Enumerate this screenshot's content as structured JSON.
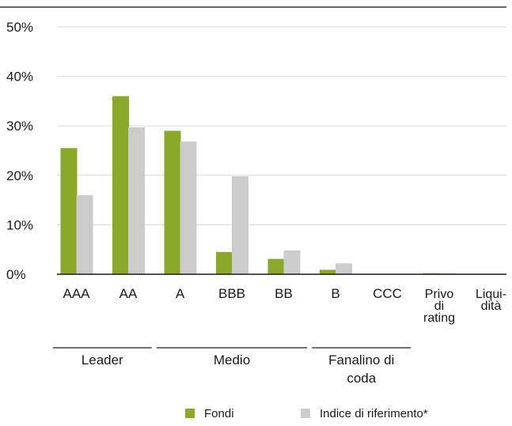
{
  "chart_data": {
    "type": "bar",
    "title": "",
    "xlabel": "",
    "ylabel": "",
    "ylim": [
      0,
      50
    ],
    "y_ticks": [
      0,
      10,
      20,
      30,
      40,
      50
    ],
    "y_tick_labels": [
      "0%",
      "10%",
      "20%",
      "30%",
      "40%",
      "50%"
    ],
    "grid": true,
    "categories": [
      [
        "AAA"
      ],
      [
        "AA"
      ],
      [
        "A"
      ],
      [
        "BBB"
      ],
      [
        "BB"
      ],
      [
        "B"
      ],
      [
        "CCC"
      ],
      [
        "Privo",
        "di",
        "rating"
      ],
      [
        "Liqui-",
        "dità"
      ]
    ],
    "series": [
      {
        "name": "Fondi",
        "color": "#8aa82a",
        "values": [
          25.5,
          36.0,
          29.0,
          4.5,
          3.1,
          0.9,
          0.0,
          0.2,
          0.0
        ]
      },
      {
        "name": "Indice di riferimento*",
        "color": "#cccccc",
        "values": [
          16.0,
          29.7,
          26.8,
          19.8,
          4.8,
          2.2,
          0.0,
          0.2,
          0.0
        ]
      }
    ],
    "groups": [
      {
        "label": [
          "Leader"
        ],
        "categories": [
          "AAA",
          "AA"
        ]
      },
      {
        "label": [
          "Medio"
        ],
        "categories": [
          "A",
          "BBB",
          "BB"
        ]
      },
      {
        "label": [
          "Fanalino di",
          "coda"
        ],
        "categories": [
          "B",
          "CCC"
        ]
      }
    ],
    "legend_position": "bottom"
  }
}
